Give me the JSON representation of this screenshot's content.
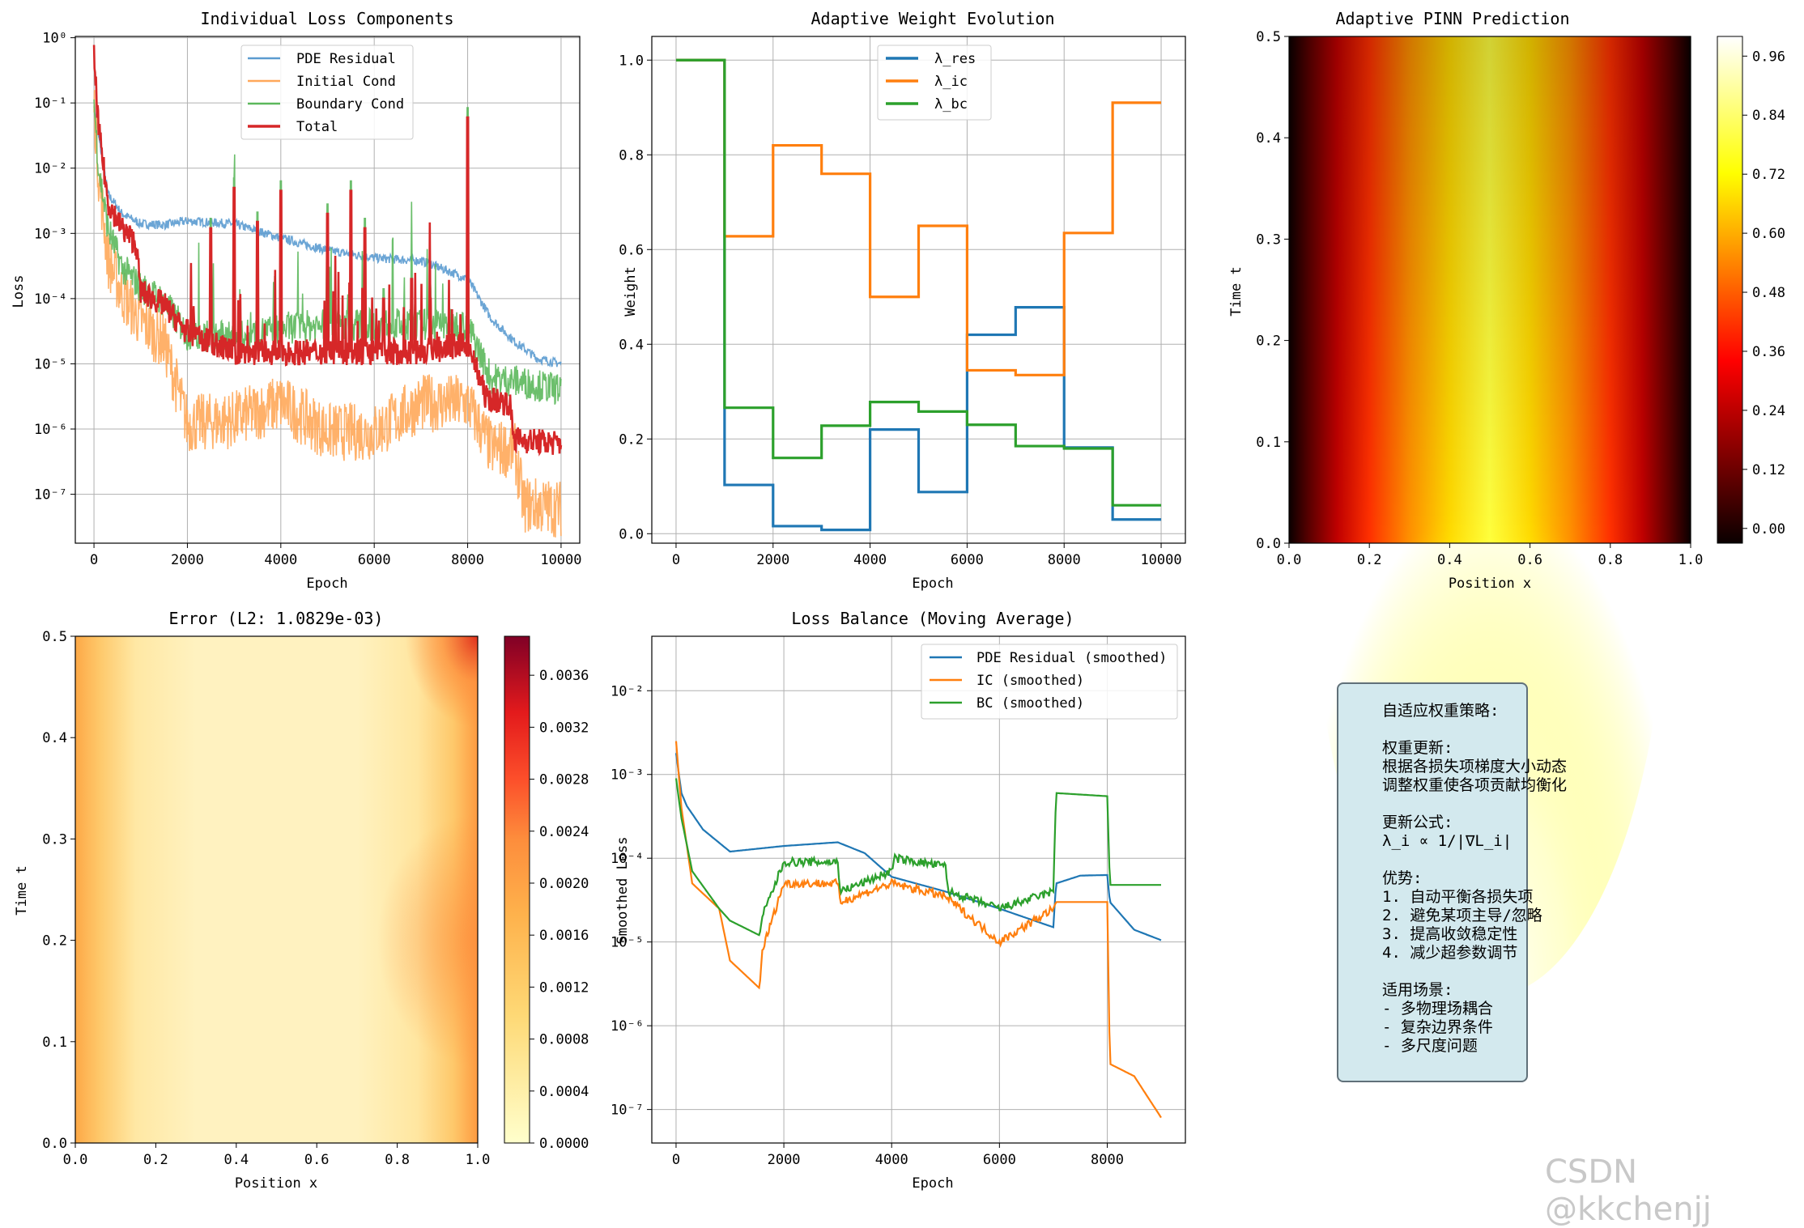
{
  "watermark": "CSDN @kkchenjj",
  "info_box": {
    "lines": [
      "自适应权重策略:",
      "",
      "权重更新:",
      "根据各损失项梯度大小动态",
      "调整权重使各项贡献均衡化",
      "",
      "更新公式:",
      "λ_i ∝ 1/|∇L_i|",
      "",
      "优势:",
      "1. 自动平衡各损失项",
      "2. 避免某项主导/忽略",
      "3. 提高收敛稳定性",
      "4. 减少超参数调节",
      "",
      "适用场景:",
      "- 多物理场耦合",
      "- 复杂边界条件",
      "- 多尺度问题"
    ]
  },
  "chart_data": [
    {
      "type": "line",
      "title": "Individual Loss Components",
      "xlabel": "Epoch",
      "ylabel": "Loss",
      "yscale": "log",
      "xlim": [
        -400,
        10400
      ],
      "xticks": [
        0,
        2000,
        4000,
        6000,
        8000,
        10000
      ],
      "ytick_labels": [
        "10⁰",
        "10⁻¹",
        "10⁻²",
        "10⁻³",
        "10⁻⁴",
        "10⁻⁵",
        "10⁻⁶",
        "10⁻⁷"
      ],
      "grid": true,
      "legend": "top-center",
      "series": [
        {
          "name": "PDE Residual",
          "color": "#5b9bd0",
          "x": [
            0,
            100,
            300,
            600,
            1000,
            1500,
            2000,
            3000,
            4000,
            5000,
            6000,
            7000,
            7500,
            8000,
            8500,
            9000,
            9500,
            10000
          ],
          "y": [
            0.1,
            0.03,
            0.004,
            0.002,
            0.0014,
            0.00135,
            0.00155,
            0.0014,
            0.00085,
            0.00055,
            0.00042,
            0.00038,
            0.00028,
            0.0002,
            5e-05,
            2.2e-05,
            1.2e-05,
            1e-05
          ]
        },
        {
          "name": "Initial Cond",
          "color": "#ffa85a",
          "x": [
            0,
            100,
            300,
            600,
            1000,
            1500,
            2000,
            3000,
            4000,
            5000,
            6000,
            7000,
            8000,
            8500,
            9000,
            9200,
            10000
          ],
          "y": [
            0.1,
            0.008,
            0.0004,
            0.00012,
            4.5e-05,
            2.2e-05,
            1.2e-06,
            1.4e-06,
            2.5e-06,
            9e-07,
            9e-07,
            2.5e-06,
            2.5e-06,
            5e-07,
            5e-07,
            7e-08,
            6e-08
          ]
        },
        {
          "name": "Boundary Cond",
          "color": "#5cb85c",
          "x": [
            0,
            100,
            300,
            600,
            1000,
            1500,
            2000,
            3000,
            4000,
            5000,
            6000,
            7000,
            8000,
            8500,
            9000,
            10000
          ],
          "y": [
            0.1,
            0.01,
            0.0012,
            0.0003,
            0.00015,
            9e-05,
            2.8e-05,
            2.5e-05,
            3.5e-05,
            4e-05,
            4e-05,
            4e-05,
            4e-05,
            6e-06,
            5.5e-06,
            4e-06
          ]
        },
        {
          "name": "Total",
          "color": "#d62728",
          "x": [
            0,
            100,
            300,
            600,
            900,
            1000,
            1500,
            2000,
            3000,
            4000,
            5000,
            6000,
            7000,
            8000,
            8400,
            8900,
            9000,
            10000
          ],
          "y": [
            0.5,
            0.04,
            0.003,
            0.0012,
            0.0007,
            0.00013,
            8e-05,
            3e-05,
            1.5e-05,
            1.5e-05,
            1.5e-05,
            1.5e-05,
            1.5e-05,
            2e-05,
            3e-06,
            2.5e-06,
            7e-07,
            6e-07
          ]
        }
      ],
      "spikes": [
        {
          "x": 1000,
          "y": 0.003
        },
        {
          "x": 2500,
          "y": 0.0012
        },
        {
          "x": 3000,
          "y": 0.005
        },
        {
          "x": 3500,
          "y": 0.0015
        },
        {
          "x": 4000,
          "y": 0.0045
        },
        {
          "x": 5000,
          "y": 0.002
        },
        {
          "x": 5500,
          "y": 0.0045
        },
        {
          "x": 5800,
          "y": 0.0012
        },
        {
          "x": 6200,
          "y": 0.0001
        },
        {
          "x": 6800,
          "y": 0.0002
        },
        {
          "x": 7200,
          "y": 0.0001
        },
        {
          "x": 8000,
          "y": 0.06
        }
      ]
    },
    {
      "type": "line",
      "title": "Adaptive Weight Evolution",
      "xlabel": "Epoch",
      "ylabel": "Weight",
      "xlim": [
        -500,
        10500
      ],
      "ylim": [
        -0.02,
        1.05
      ],
      "xticks": [
        0,
        2000,
        4000,
        6000,
        8000,
        10000
      ],
      "yticks": [
        0.0,
        0.2,
        0.4,
        0.6,
        0.8,
        1.0
      ],
      "grid": true,
      "legend": "top-center",
      "steps": [
        0,
        1000,
        2000,
        3000,
        4000,
        5000,
        6000,
        7000,
        8000,
        9000,
        10000
      ],
      "series": [
        {
          "name": "λ_res",
          "color": "#1f77b4",
          "values": [
            1.0,
            0.103,
            0.016,
            0.008,
            0.22,
            0.088,
            0.42,
            0.478,
            0.182,
            0.03,
            0.03
          ]
        },
        {
          "name": "λ_ic",
          "color": "#ff7f0e",
          "values": [
            1.0,
            0.628,
            0.82,
            0.76,
            0.5,
            0.65,
            0.345,
            0.335,
            0.635,
            0.91,
            0.91
          ]
        },
        {
          "name": "λ_bc",
          "color": "#2ca02c",
          "values": [
            1.0,
            0.266,
            0.16,
            0.228,
            0.278,
            0.258,
            0.23,
            0.185,
            0.18,
            0.06,
            0.06
          ]
        }
      ]
    },
    {
      "type": "heatmap",
      "title": "Adaptive PINN Prediction",
      "xlabel": "Position x",
      "ylabel": "Time t",
      "xlim": [
        0.0,
        1.0
      ],
      "ylim": [
        0.0,
        0.5
      ],
      "xticks": [
        "0.0",
        "0.2",
        "0.4",
        "0.6",
        "0.8",
        "1.0"
      ],
      "yticks": [
        "0.0",
        "0.1",
        "0.2",
        "0.3",
        "0.4",
        "0.5"
      ],
      "colormap": "hot",
      "colorbar_ticks": [
        "0.00",
        "0.12",
        "0.24",
        "0.36",
        "0.48",
        "0.60",
        "0.72",
        "0.84",
        "0.96"
      ],
      "value_range": [
        -0.03,
        1.0
      ],
      "description_fn": "sin(pi x) * exp(-decay t)"
    },
    {
      "type": "heatmap",
      "title": "Error (L2: 1.0829e-03)",
      "xlabel": "Position x",
      "ylabel": "Time t",
      "xlim": [
        0.0,
        1.0
      ],
      "ylim": [
        0.0,
        0.5
      ],
      "xticks": [
        "0.0",
        "0.2",
        "0.4",
        "0.6",
        "0.8",
        "1.0"
      ],
      "yticks": [
        "0.0",
        "0.1",
        "0.2",
        "0.3",
        "0.4",
        "0.5"
      ],
      "colormap": "YlOrRd",
      "colorbar_ticks": [
        "0.0000",
        "0.0004",
        "0.0008",
        "0.0012",
        "0.0016",
        "0.0020",
        "0.0024",
        "0.0028",
        "0.0032",
        "0.0036"
      ],
      "value_range": [
        0.0,
        0.0039
      ]
    },
    {
      "type": "line",
      "title": "Loss Balance (Moving Average)",
      "xlabel": "Epoch",
      "ylabel": "Smoothed Loss",
      "yscale": "log",
      "xlim": [
        -450,
        9450
      ],
      "xticks": [
        0,
        2000,
        4000,
        6000,
        8000
      ],
      "ytick_labels": [
        "10⁻²",
        "10⁻³",
        "10⁻⁴",
        "10⁻⁵",
        "10⁻⁶",
        "10⁻⁷"
      ],
      "grid": true,
      "legend": "top-right",
      "series": [
        {
          "name": "PDE Residual (smoothed)",
          "color": "#1f77b4",
          "x": [
            0,
            100,
            200,
            500,
            1000,
            2000,
            3000,
            3500,
            4000,
            5000,
            6000,
            7000,
            7050,
            7500,
            8000,
            8050,
            8500,
            9000
          ],
          "y": [
            0.0018,
            0.0006,
            0.00042,
            0.00022,
            0.00012,
            0.00014,
            0.000155,
            0.000115,
            6e-05,
            4e-05,
            2.5e-05,
            1.5e-05,
            5e-05,
            6.2e-05,
            6.3e-05,
            3e-05,
            1.4e-05,
            1.05e-05
          ]
        },
        {
          "name": "IC (smoothed)",
          "color": "#ff7f0e",
          "x": [
            0,
            100,
            300,
            800,
            1000,
            1550,
            1600,
            2000,
            3000,
            3050,
            4000,
            5000,
            6000,
            7000,
            7050,
            8000,
            8050,
            8500,
            9000
          ],
          "y": [
            0.0025,
            0.0004,
            5e-05,
            2.5e-05,
            6e-06,
            2.8e-06,
            8e-06,
            5e-05,
            5e-05,
            3e-05,
            5e-05,
            3.5e-05,
            1e-05,
            2.5e-05,
            3e-05,
            3e-05,
            3.5e-07,
            2.5e-07,
            8e-08
          ]
        },
        {
          "name": "BC (smoothed)",
          "color": "#2ca02c",
          "x": [
            0,
            100,
            300,
            800,
            1000,
            1550,
            1600,
            2000,
            3000,
            3050,
            4000,
            4050,
            5000,
            5050,
            6000,
            7000,
            7050,
            8000,
            8050,
            9000
          ],
          "y": [
            0.0009,
            0.0003,
            7e-05,
            2.5e-05,
            1.8e-05,
            1.2e-05,
            2e-05,
            9e-05,
            9e-05,
            4e-05,
            7e-05,
            0.0001,
            8e-05,
            4e-05,
            2.5e-05,
            4e-05,
            0.0006,
            0.00055,
            4.8e-05,
            4.8e-05
          ]
        }
      ]
    }
  ]
}
